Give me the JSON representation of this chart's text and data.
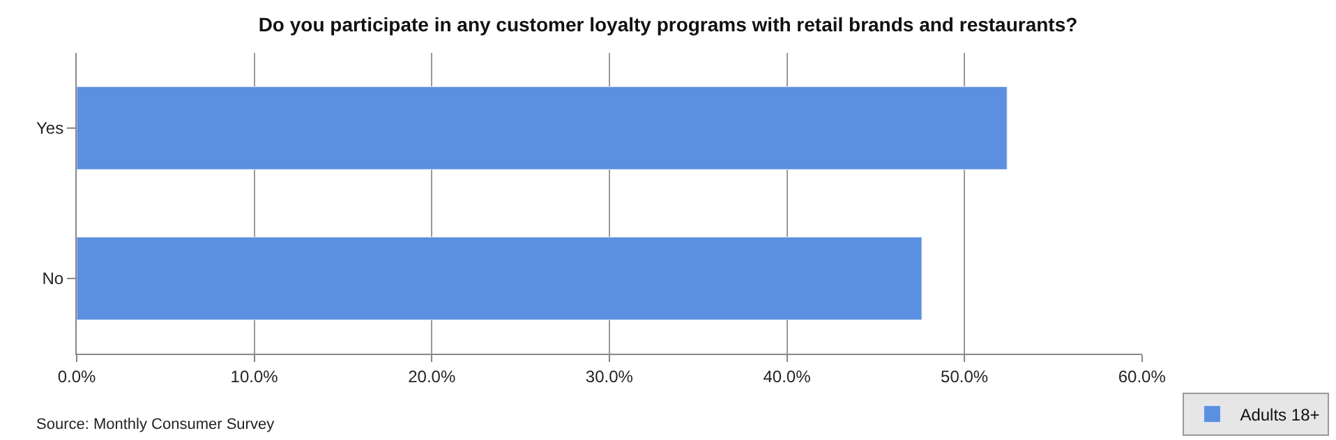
{
  "chart_data": {
    "type": "bar",
    "orientation": "horizontal",
    "title": "Do you participate in any customer loyalty programs with retail brands and restaurants?",
    "categories": [
      "Yes",
      "No"
    ],
    "series": [
      {
        "name": "Adults 18+",
        "color": "#5b8fe0",
        "values": [
          52.4,
          47.6
        ]
      }
    ],
    "xlim": [
      0,
      60
    ],
    "xticks": [
      {
        "value": 0,
        "label": "0.0%"
      },
      {
        "value": 10,
        "label": "10.0%"
      },
      {
        "value": 20,
        "label": "20.0%"
      },
      {
        "value": 30,
        "label": "30.0%"
      },
      {
        "value": 40,
        "label": "40.0%"
      },
      {
        "value": 50,
        "label": "50.0%"
      },
      {
        "value": 60,
        "label": "60.0%"
      }
    ],
    "grid": "x",
    "legend": "bottom right",
    "annotations": [
      "Source: Monthly Consumer Survey"
    ]
  }
}
